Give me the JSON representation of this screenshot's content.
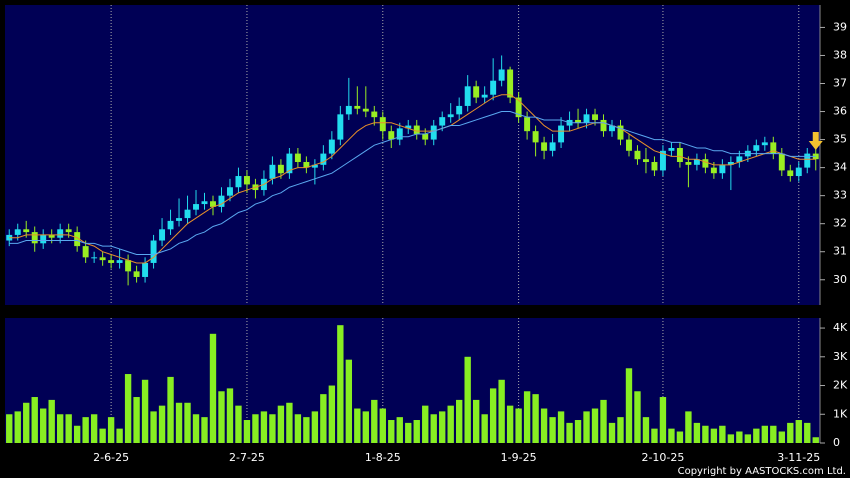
{
  "chart_data": [
    {
      "type": "candlestick",
      "up_color": "#22ddee",
      "down_color": "#99ee22",
      "xlim": [
        -0.5,
        95.5
      ],
      "ylim": [
        29.1,
        39.8
      ],
      "yticks": [
        30,
        31,
        32,
        33,
        34,
        35,
        36,
        37,
        38,
        39
      ],
      "open": [
        31.4,
        31.6,
        31.8,
        31.7,
        31.3,
        31.6,
        31.5,
        31.8,
        31.7,
        31.2,
        30.8,
        30.8,
        30.7,
        30.6,
        30.7,
        30.3,
        30.1,
        30.6,
        31.4,
        31.8,
        32.1,
        32.2,
        32.5,
        32.7,
        32.8,
        32.6,
        33.0,
        33.3,
        33.7,
        33.4,
        33.2,
        33.6,
        34.1,
        33.8,
        34.5,
        34.2,
        34.0,
        34.1,
        34.5,
        35.0,
        35.9,
        36.2,
        36.1,
        36.0,
        35.8,
        35.3,
        35.0,
        35.4,
        35.5,
        35.2,
        35.0,
        35.5,
        35.8,
        35.9,
        36.2,
        36.9,
        36.5,
        36.6,
        37.1,
        37.5,
        36.5,
        35.8,
        35.3,
        34.9,
        34.6,
        34.9,
        35.5,
        35.7,
        35.6,
        35.9,
        35.7,
        35.3,
        35.5,
        35.0,
        34.6,
        34.3,
        34.2,
        33.9,
        34.6,
        34.7,
        34.2,
        34.1,
        34.3,
        34.0,
        33.8,
        34.1,
        34.2,
        34.4,
        34.6,
        34.8,
        34.9,
        34.5,
        33.9,
        33.7,
        34.0,
        34.5
      ],
      "high": [
        31.8,
        32.0,
        32.1,
        31.9,
        31.8,
        31.8,
        32.0,
        32.0,
        31.9,
        31.4,
        31.0,
        31.0,
        30.9,
        31.1,
        30.9,
        30.5,
        30.8,
        31.6,
        32.2,
        32.5,
        32.9,
        33.0,
        33.2,
        33.1,
        33.0,
        33.3,
        33.6,
        34.0,
        33.9,
        33.6,
        33.9,
        34.4,
        34.3,
        34.7,
        34.7,
        34.4,
        34.3,
        34.8,
        35.3,
        36.2,
        37.2,
        36.9,
        36.9,
        36.2,
        36.0,
        35.5,
        35.6,
        35.7,
        35.7,
        35.4,
        35.7,
        36.0,
        36.3,
        36.5,
        37.3,
        37.1,
        36.9,
        37.9,
        38.0,
        37.6,
        36.7,
        36.0,
        35.5,
        35.1,
        35.2,
        35.8,
        36.0,
        36.1,
        36.1,
        36.1,
        35.9,
        35.7,
        35.7,
        35.2,
        34.8,
        34.7,
        34.4,
        34.8,
        34.9,
        34.9,
        34.4,
        34.5,
        34.5,
        34.2,
        34.3,
        34.4,
        34.6,
        34.8,
        35.0,
        35.1,
        35.1,
        34.7,
        34.1,
        34.2,
        34.7,
        34.9
      ],
      "low": [
        31.2,
        31.4,
        31.5,
        31.0,
        31.1,
        31.3,
        31.3,
        31.5,
        31.0,
        30.6,
        30.6,
        30.5,
        30.4,
        30.4,
        29.8,
        29.9,
        29.9,
        30.4,
        31.2,
        31.6,
        31.9,
        32.0,
        32.3,
        32.5,
        32.3,
        32.4,
        32.8,
        33.1,
        33.1,
        32.9,
        33.0,
        33.4,
        33.6,
        33.6,
        34.0,
        33.8,
        33.4,
        33.9,
        34.3,
        34.8,
        35.7,
        35.9,
        35.8,
        35.5,
        35.0,
        34.7,
        34.8,
        35.2,
        35.0,
        34.8,
        34.8,
        35.3,
        35.6,
        35.7,
        36.0,
        36.3,
        36.3,
        36.4,
        36.9,
        36.3,
        35.6,
        35.0,
        34.4,
        34.3,
        34.4,
        34.7,
        35.3,
        35.4,
        35.4,
        35.5,
        35.1,
        35.1,
        34.8,
        34.4,
        34.1,
        33.8,
        33.7,
        33.7,
        34.4,
        34.0,
        33.3,
        33.9,
        33.8,
        33.6,
        33.6,
        33.2,
        34.0,
        34.2,
        34.4,
        34.6,
        34.3,
        33.7,
        33.5,
        33.5,
        33.8,
        33.9
      ],
      "close": [
        31.6,
        31.8,
        31.7,
        31.3,
        31.6,
        31.5,
        31.8,
        31.7,
        31.2,
        30.8,
        30.8,
        30.7,
        30.6,
        30.7,
        30.3,
        30.1,
        30.6,
        31.4,
        31.8,
        32.1,
        32.2,
        32.5,
        32.7,
        32.8,
        32.6,
        33.0,
        33.3,
        33.7,
        33.4,
        33.2,
        33.6,
        34.1,
        33.8,
        34.5,
        34.2,
        34.0,
        34.1,
        34.5,
        35.0,
        35.9,
        36.2,
        36.1,
        36.0,
        35.8,
        35.3,
        35.0,
        35.4,
        35.5,
        35.2,
        35.0,
        35.5,
        35.8,
        35.9,
        36.2,
        36.9,
        36.5,
        36.6,
        37.1,
        37.5,
        36.5,
        35.8,
        35.3,
        34.9,
        34.6,
        34.9,
        35.5,
        35.7,
        35.6,
        35.9,
        35.7,
        35.3,
        35.5,
        35.0,
        34.6,
        34.3,
        34.2,
        33.9,
        34.6,
        34.7,
        34.2,
        34.1,
        34.3,
        34.0,
        33.8,
        34.1,
        34.2,
        34.4,
        34.6,
        34.8,
        34.9,
        34.5,
        33.9,
        33.7,
        34.0,
        34.5,
        34.3
      ],
      "series": [
        {
          "color": "#e8902a",
          "values": [
            31.5,
            31.5,
            31.6,
            31.6,
            31.6,
            31.6,
            31.6,
            31.6,
            31.5,
            31.3,
            31.2,
            31.0,
            30.9,
            30.8,
            30.7,
            30.6,
            30.6,
            30.8,
            31.1,
            31.4,
            31.7,
            32.0,
            32.2,
            32.4,
            32.6,
            32.7,
            32.9,
            33.1,
            33.2,
            33.3,
            33.4,
            33.6,
            33.7,
            33.9,
            34.0,
            34.0,
            34.1,
            34.2,
            34.4,
            34.7,
            35.0,
            35.3,
            35.5,
            35.6,
            35.6,
            35.6,
            35.5,
            35.4,
            35.3,
            35.3,
            35.3,
            35.4,
            35.5,
            35.7,
            35.9,
            36.1,
            36.3,
            36.5,
            36.6,
            36.6,
            36.4,
            36.1,
            35.8,
            35.5,
            35.3,
            35.3,
            35.3,
            35.4,
            35.5,
            35.6,
            35.6,
            35.5,
            35.4,
            35.2,
            35.0,
            34.8,
            34.6,
            34.5,
            34.4,
            34.4,
            34.3,
            34.3,
            34.2,
            34.1,
            34.1,
            34.1,
            34.2,
            34.3,
            34.4,
            34.5,
            34.6,
            34.5,
            34.4,
            34.3,
            34.3,
            34.3
          ]
        },
        {
          "color": "#5aa8f0",
          "values": [
            31.3,
            31.3,
            31.4,
            31.4,
            31.4,
            31.4,
            31.4,
            31.4,
            31.4,
            31.3,
            31.3,
            31.2,
            31.2,
            31.1,
            31.0,
            30.9,
            30.9,
            30.9,
            31.0,
            31.1,
            31.3,
            31.4,
            31.6,
            31.7,
            31.9,
            32.0,
            32.2,
            32.4,
            32.5,
            32.7,
            32.8,
            33.0,
            33.1,
            33.3,
            33.4,
            33.5,
            33.6,
            33.7,
            33.8,
            34.0,
            34.2,
            34.4,
            34.6,
            34.8,
            34.9,
            35.0,
            35.1,
            35.1,
            35.2,
            35.2,
            35.3,
            35.4,
            35.5,
            35.5,
            35.6,
            35.7,
            35.8,
            35.9,
            36.0,
            36.0,
            35.9,
            35.8,
            35.8,
            35.7,
            35.7,
            35.7,
            35.6,
            35.6,
            35.6,
            35.6,
            35.6,
            35.5,
            35.4,
            35.3,
            35.2,
            35.1,
            35.0,
            35.0,
            34.9,
            34.9,
            34.8,
            34.7,
            34.7,
            34.6,
            34.6,
            34.5,
            34.5,
            34.5,
            34.5,
            34.5,
            34.5,
            34.5,
            34.4,
            34.4,
            34.4,
            34.4
          ]
        }
      ]
    },
    {
      "type": "bar",
      "color": "#88ee22",
      "xlim": [
        -0.5,
        95.5
      ],
      "xticks": [
        {
          "value": 12,
          "label": "2-6-25"
        },
        {
          "value": 28,
          "label": "2-7-25"
        },
        {
          "value": 44,
          "label": "1-8-25"
        },
        {
          "value": 60,
          "label": "1-9-25"
        },
        {
          "value": 77,
          "label": "2-10-25"
        },
        {
          "value": 93,
          "label": "3-11-25"
        }
      ],
      "ylim": [
        0,
        4350
      ],
      "yticks": [
        0,
        {
          "value": 1000,
          "label": "1K"
        },
        {
          "value": 2000,
          "label": "2K"
        },
        {
          "value": 3000,
          "label": "3K"
        },
        {
          "value": 4000,
          "label": "4K"
        }
      ],
      "values": [
        1000,
        1100,
        1400,
        1600,
        1200,
        1500,
        1000,
        1000,
        600,
        900,
        1000,
        500,
        900,
        500,
        2400,
        1600,
        2200,
        1100,
        1300,
        2300,
        1400,
        1400,
        1000,
        900,
        3800,
        1800,
        1900,
        1300,
        800,
        1000,
        1100,
        1000,
        1300,
        1400,
        1000,
        900,
        1100,
        1700,
        2000,
        4100,
        2900,
        1200,
        1100,
        1500,
        1200,
        800,
        900,
        700,
        800,
        1300,
        1000,
        1100,
        1300,
        1500,
        3000,
        1500,
        1000,
        1900,
        2200,
        1300,
        1200,
        1800,
        1700,
        1200,
        900,
        1100,
        700,
        800,
        1100,
        1200,
        1500,
        700,
        900,
        2600,
        1800,
        900,
        500,
        1600,
        500,
        400,
        1100,
        700,
        600,
        500,
        600,
        300,
        400,
        300,
        500,
        600,
        600,
        400,
        700,
        800,
        700,
        200
      ]
    }
  ],
  "footer": "Copyright by AASTOCKS.com Ltd."
}
